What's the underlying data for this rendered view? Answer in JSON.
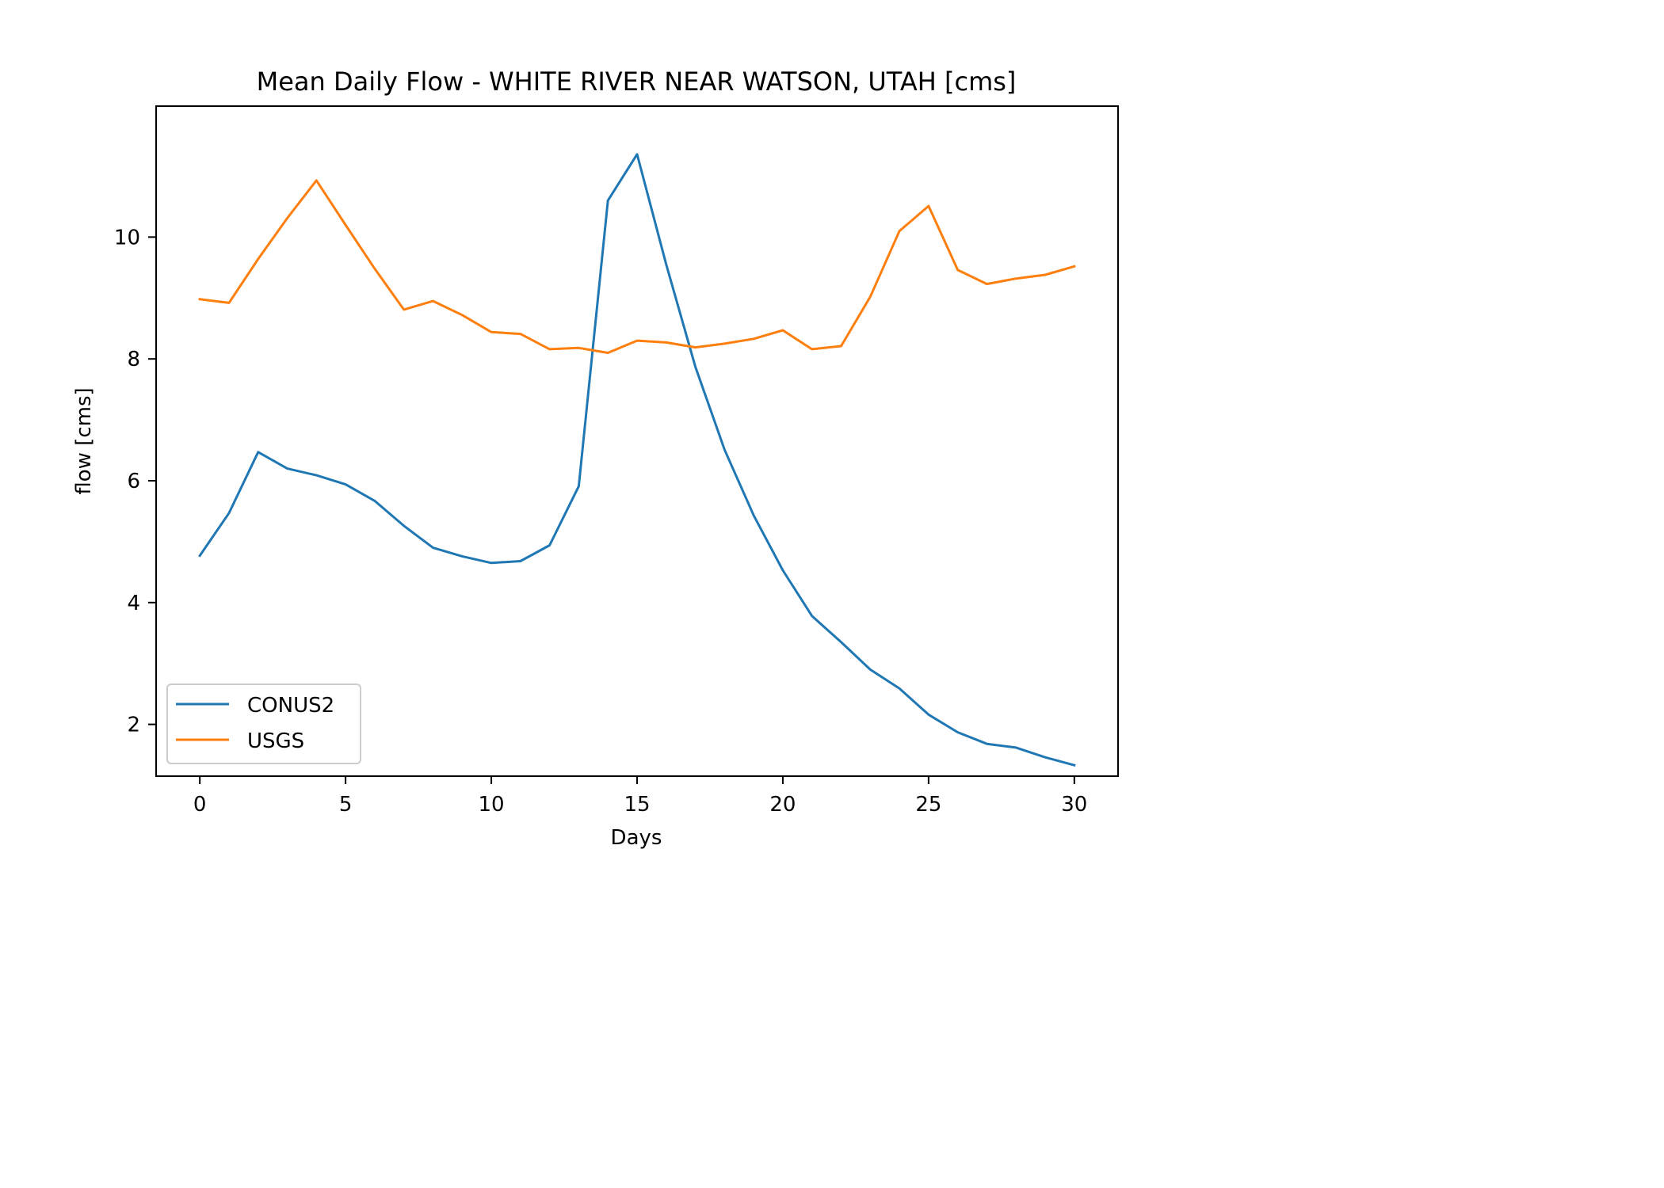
{
  "chart_data": {
    "type": "line",
    "title": "Mean Daily Flow - WHITE RIVER NEAR WATSON, UTAH [cms]",
    "xlabel": "Days",
    "ylabel": "flow [cms]",
    "xlim": [
      -1.5,
      31.5
    ],
    "ylim": [
      1.15,
      12.15
    ],
    "xticks": [
      0,
      5,
      10,
      15,
      20,
      25,
      30
    ],
    "yticks": [
      2,
      4,
      6,
      8,
      10
    ],
    "grid": false,
    "legend": "lower-left",
    "x": [
      0,
      1,
      2,
      3,
      4,
      5,
      6,
      7,
      8,
      9,
      10,
      11,
      12,
      13,
      14,
      15,
      16,
      17,
      18,
      19,
      20,
      21,
      22,
      23,
      24,
      25,
      26,
      27,
      28,
      29,
      30
    ],
    "series": [
      {
        "name": "CONUS2",
        "color": "#1f77b4",
        "values": [
          4.77,
          5.47,
          6.47,
          6.2,
          6.09,
          5.94,
          5.67,
          5.26,
          4.9,
          4.76,
          4.65,
          4.68,
          4.94,
          5.91,
          10.6,
          11.36,
          9.55,
          7.87,
          6.51,
          5.43,
          4.53,
          3.78,
          3.35,
          2.9,
          2.59,
          2.16,
          1.87,
          1.68,
          1.62,
          1.46,
          1.33
        ]
      },
      {
        "name": "USGS",
        "color": "#ff7f0e",
        "values": [
          8.98,
          8.92,
          9.64,
          10.31,
          10.93,
          10.2,
          9.48,
          8.81,
          8.95,
          8.72,
          8.44,
          8.41,
          8.16,
          8.18,
          8.1,
          8.3,
          8.27,
          8.19,
          8.25,
          8.33,
          8.47,
          8.16,
          8.21,
          9.02,
          10.1,
          10.51,
          9.46,
          9.23,
          9.32,
          9.38,
          9.52
        ]
      }
    ]
  }
}
